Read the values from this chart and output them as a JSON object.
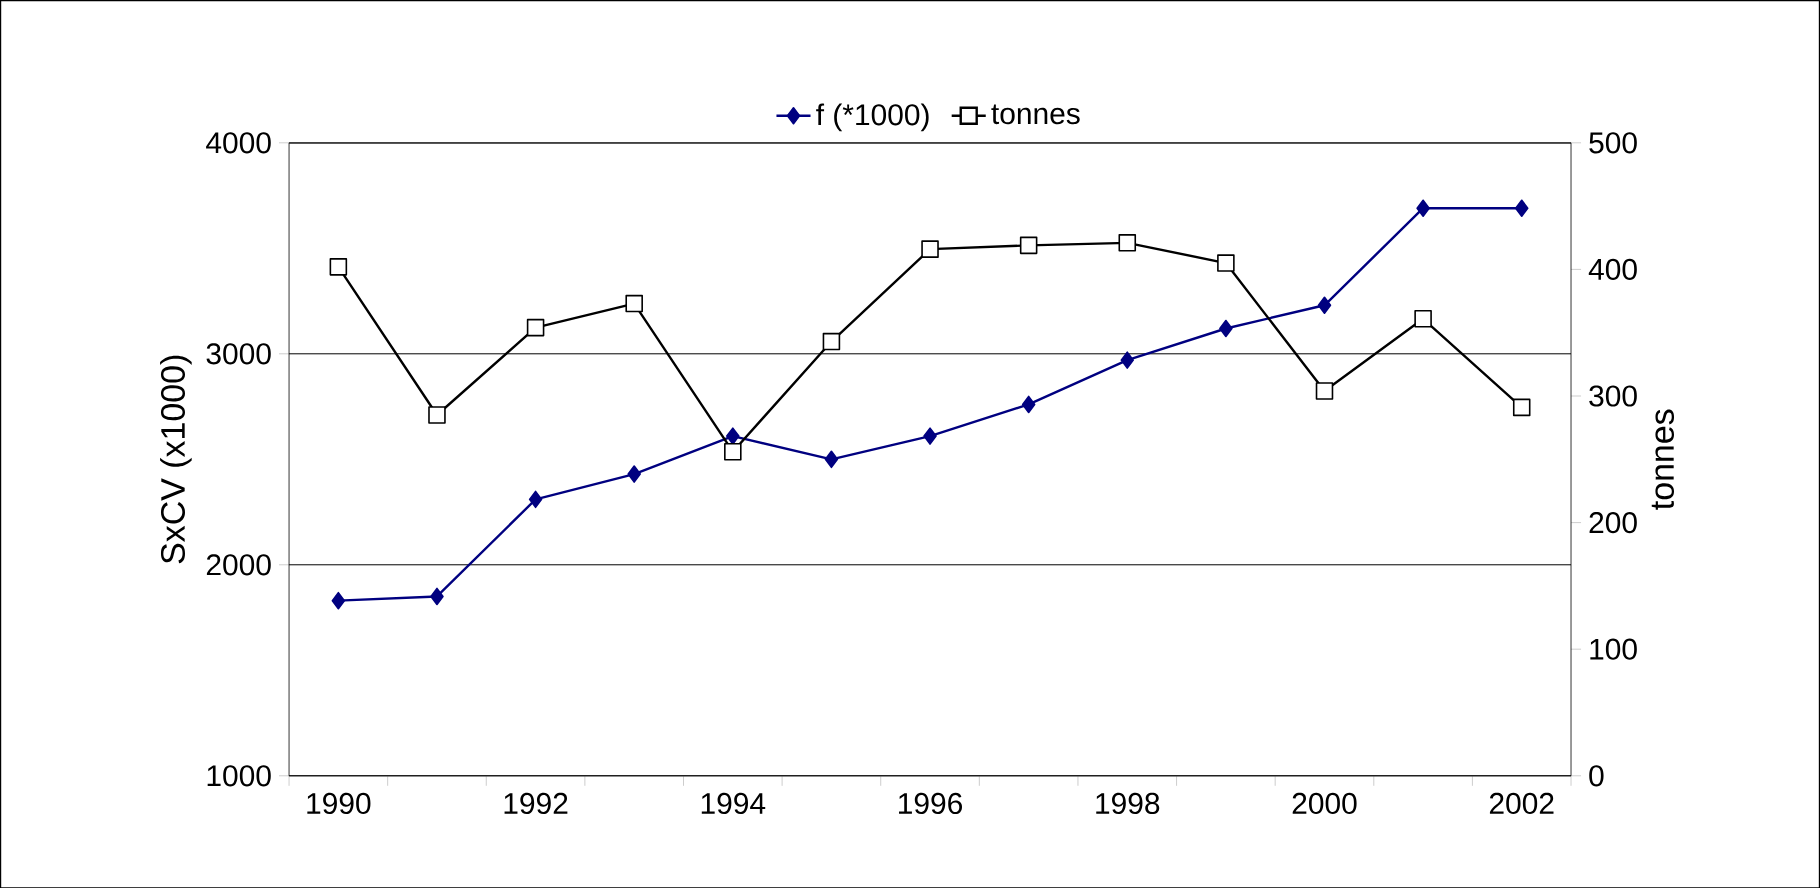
{
  "chart_data": {
    "type": "line",
    "ylabel": "SxCV (x1000)",
    "y2label": "tonnes",
    "categories": [
      "1990",
      null,
      "1992",
      null,
      "1994",
      null,
      "1996",
      null,
      "1998",
      null,
      "2000",
      null,
      "2002"
    ],
    "ylim": [
      1000,
      4000
    ],
    "yticks": [
      1000,
      2000,
      3000,
      4000
    ],
    "y2lim": [
      0,
      500
    ],
    "y2ticks": [
      0,
      100,
      200,
      300,
      400,
      500
    ],
    "grid": "y",
    "legend": "top",
    "series": [
      {
        "name": "f (*1000)",
        "color": "#000080",
        "marker": "diamond",
        "values": [
          1830,
          1850,
          2310,
          2430,
          2610,
          2500,
          2610,
          2760,
          2970,
          3120,
          3230,
          3690,
          3690
        ]
      },
      {
        "name": "tonnes",
        "color": "#000000",
        "marker": "square",
        "axis": "y2",
        "values": [
          402,
          285,
          354,
          373,
          256,
          343,
          416,
          419,
          421,
          405,
          304,
          361,
          291
        ]
      }
    ]
  }
}
